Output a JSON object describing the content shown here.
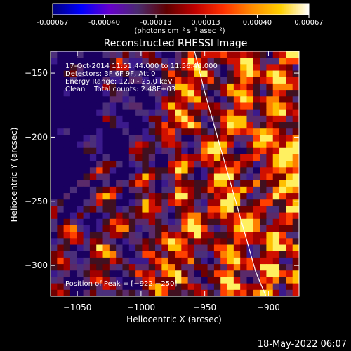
{
  "colorbar": {
    "tick_labels": [
      "-0.00067",
      "-0.00040",
      "-0.00013",
      "0.00013",
      "0.00040",
      "0.00067"
    ],
    "tick_values": [
      -0.00067,
      -0.0004,
      -0.00013,
      0.00013,
      0.0004,
      0.00067
    ],
    "range": [
      -0.00067,
      0.00067
    ],
    "units": "(photons cm⁻² s⁻¹ asec⁻²)",
    "colors": [
      "#00007f",
      "#0000ff",
      "#6600cc",
      "#4a2b6e",
      "#600000",
      "#c00000",
      "#ff3000",
      "#ff8c00",
      "#ffd000",
      "#ffffff"
    ]
  },
  "footer": {
    "timestamp": "18-May-2022 06:07"
  },
  "chart_data": {
    "type": "heatmap",
    "title": "Reconstructed RHESSI Image",
    "xlabel": "Heliocentric X (arcsec)",
    "ylabel": "Heliocentric Y (arcsec)",
    "xlim": [
      -1071,
      -876
    ],
    "ylim": [
      -324,
      -133
    ],
    "x_ticks": [
      -1050,
      -1000,
      -950,
      -900
    ],
    "x_tick_labels": [
      "−1050",
      "−1000",
      "−950",
      "−900"
    ],
    "y_ticks": [
      -150,
      -200,
      -250,
      -300
    ],
    "y_tick_labels": [
      "−150",
      "−200",
      "−250",
      "−300"
    ],
    "annotations": [
      "17-Oct-2014 11:51:44.000 to 11:56:40.000",
      "Detectors: 3F 6F 9F, Att 0",
      "Energy Range: 12.0 - 25.0 keV",
      "Clean    Total counts: 2.48E+03"
    ],
    "peak_label": "Position of Peak = [−922,−250]",
    "peak": [
      -922,
      -250
    ],
    "limb_curve": {
      "x": [
        -958,
        -950,
        -940,
        -930,
        -920,
        -910,
        -902
      ],
      "y": [
        -133,
        -165,
        -200,
        -235,
        -270,
        -305,
        -324
      ]
    }
  }
}
